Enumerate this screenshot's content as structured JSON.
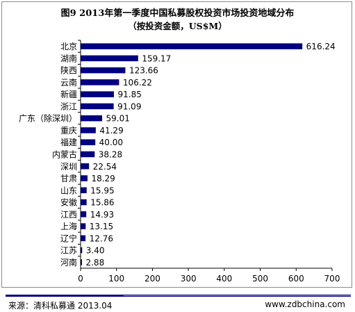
{
  "chart_data": {
    "type": "bar",
    "orientation": "horizontal",
    "title": "图9 2013年第一季度中国私募股权投资市场投资地域分布",
    "subtitle": "（按投资金额，US$M）",
    "categories": [
      "北京",
      "湖南",
      "陕西",
      "云南",
      "新疆",
      "浙江",
      "广东（除深圳）",
      "重庆",
      "福建",
      "内蒙古",
      "深圳",
      "甘肃",
      "山东",
      "安徽",
      "江西",
      "上海",
      "辽宁",
      "江苏",
      "河南"
    ],
    "values": [
      616.24,
      159.17,
      123.66,
      106.22,
      91.85,
      91.09,
      59.01,
      41.29,
      40.0,
      38.28,
      22.54,
      18.29,
      15.95,
      15.86,
      14.93,
      13.15,
      12.76,
      3.4,
      2.88
    ],
    "value_labels": [
      "616.24",
      "159.17",
      "123.66",
      "106.22",
      "91.85",
      "91.09",
      "59.01",
      "41.29",
      "40.00",
      "38.28",
      "22.54",
      "18.29",
      "15.95",
      "15.86",
      "14.93",
      "13.15",
      "12.76",
      "3.40",
      "2.88"
    ],
    "xlim": [
      0,
      700
    ],
    "xticks": [
      0,
      100,
      200,
      300,
      400,
      500,
      600,
      700
    ],
    "grid": false,
    "legend": "none",
    "bar_color": "#000080"
  },
  "footer": {
    "source": "来源：清科私募通 2013.04",
    "site": "www.zdbchina.com"
  }
}
